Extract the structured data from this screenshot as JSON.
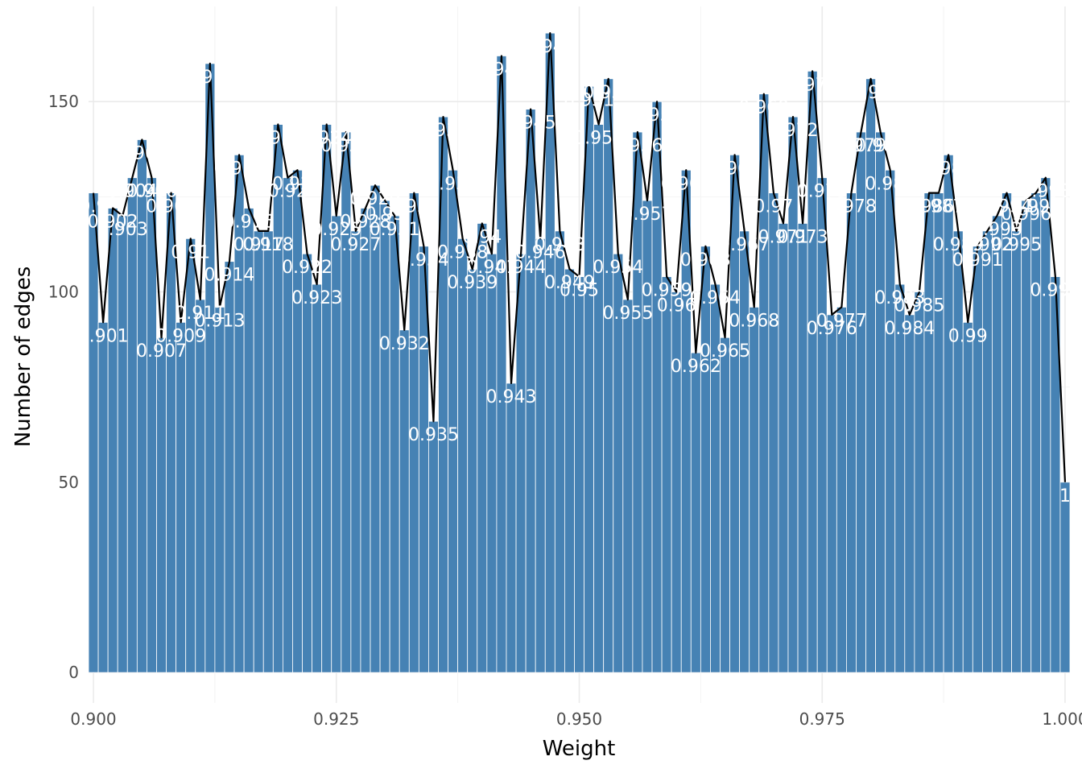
{
  "chart_data": {
    "type": "bar",
    "xlabel": "Weight",
    "ylabel": "Number of edges",
    "xlim": [
      0.8995,
      1.0005
    ],
    "ylim": [
      -8,
      175
    ],
    "x_ticks": [
      "0.900",
      "0.925",
      "0.950",
      "0.975",
      "1.000"
    ],
    "y_ticks": [
      "0",
      "50",
      "100",
      "150"
    ],
    "grid": true,
    "legend": "none",
    "bar_color": "#4682b4",
    "line_color": "#000000",
    "label_color": "#ffffff",
    "x": [
      "0.9",
      "0.901",
      "0.902",
      "0.903",
      "0.904",
      "0.905",
      "0.906",
      "0.907",
      "0.908",
      "0.909",
      "0.91",
      "0.911",
      "0.912",
      "0.913",
      "0.914",
      "0.915",
      "0.916",
      "0.917",
      "0.918",
      "0.919",
      "0.92",
      "0.921",
      "0.922",
      "0.923",
      "0.924",
      "0.925",
      "0.926",
      "0.927",
      "0.928",
      "0.929",
      "0.93",
      "0.931",
      "0.932",
      "0.933",
      "0.934",
      "0.935",
      "0.936",
      "0.937",
      "0.938",
      "0.939",
      "0.94",
      "0.941",
      "0.942",
      "0.943",
      "0.944",
      "0.945",
      "0.946",
      "0.947",
      "0.948",
      "0.949",
      "0.95",
      "0.951",
      "0.952",
      "0.953",
      "0.954",
      "0.955",
      "0.956",
      "0.957",
      "0.958",
      "0.959",
      "0.96",
      "0.961",
      "0.962",
      "0.963",
      "0.964",
      "0.965",
      "0.966",
      "0.967",
      "0.968",
      "0.969",
      "0.97",
      "0.971",
      "0.972",
      "0.973",
      "0.974",
      "0.975",
      "0.976",
      "0.977",
      "0.978",
      "0.979",
      "0.98",
      "0.981",
      "0.982",
      "0.983",
      "0.984",
      "0.985",
      "0.986",
      "0.987",
      "0.988",
      "0.989",
      "0.99",
      "0.991",
      "0.992",
      "0.993",
      "0.994",
      "0.995",
      "0.996",
      "0.997",
      "0.998",
      "0.999",
      "1"
    ],
    "values": [
      126,
      92,
      122,
      120,
      130,
      140,
      130,
      88,
      126,
      92,
      114,
      98,
      160,
      96,
      108,
      136,
      122,
      116,
      116,
      144,
      130,
      132,
      110,
      102,
      144,
      120,
      142,
      116,
      122,
      128,
      124,
      120,
      90,
      126,
      112,
      66,
      146,
      132,
      114,
      106,
      118,
      110,
      162,
      76,
      110,
      148,
      114,
      168,
      116,
      106,
      104,
      154,
      144,
      156,
      110,
      98,
      142,
      124,
      150,
      104,
      100,
      132,
      84,
      112,
      102,
      88,
      136,
      116,
      96,
      152,
      126,
      118,
      146,
      118,
      158,
      130,
      94,
      96,
      126,
      142,
      156,
      142,
      132,
      102,
      94,
      100,
      126,
      126,
      136,
      116,
      92,
      112,
      116,
      120,
      126,
      116,
      124,
      126,
      130,
      104,
      50
    ]
  }
}
